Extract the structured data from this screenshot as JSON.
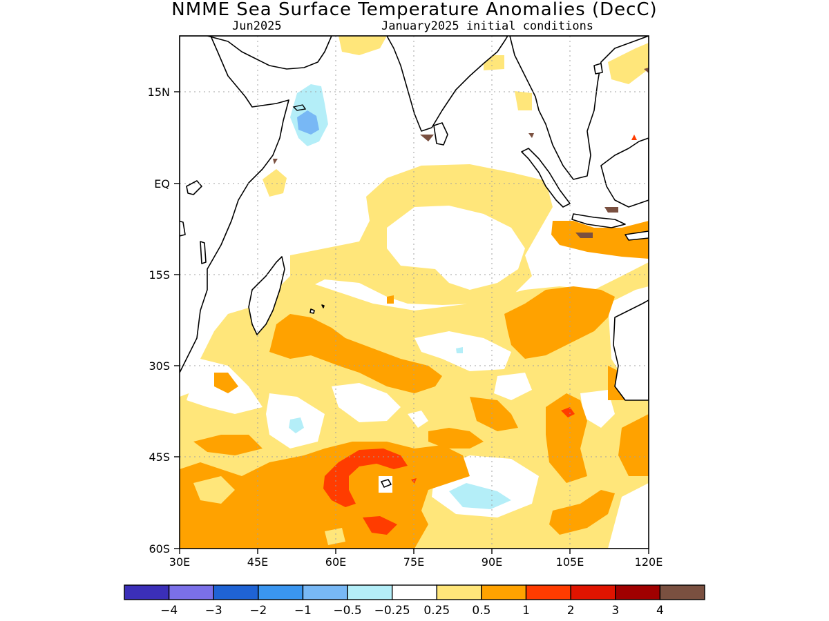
{
  "title": "NMME Sea Surface Temperature Anomalies (DecC)",
  "subtitle_left": "Jun2025",
  "subtitle_right": "January2025 initial conditions",
  "colors": {
    "ocean": "#ffffff",
    "coast": "#000000",
    "grid": "#a0a0a0"
  },
  "chart_data": {
    "type": "heatmap",
    "title": "NMME Sea Surface Temperature Anomalies (DecC)",
    "subtitle": "Jun2025 — January2025 initial conditions",
    "units": "DecC",
    "x_axis": {
      "ticks": [
        "30E",
        "45E",
        "60E",
        "75E",
        "90E",
        "105E",
        "120E"
      ],
      "range": [
        30,
        120
      ]
    },
    "y_axis": {
      "ticks": [
        "15N",
        "EQ",
        "15S",
        "30S",
        "45S",
        "60S"
      ],
      "range": [
        -60,
        24
      ]
    },
    "grid": "dotted",
    "colorbar": {
      "labels": [
        "−4",
        "−3",
        "−2",
        "−1",
        "−0.5",
        "−0.25",
        "0.25",
        "0.5",
        "1",
        "2",
        "3",
        "4"
      ],
      "colors": [
        "#3b2fb8",
        "#7b70e8",
        "#1f63d4",
        "#3a96f0",
        "#78b8f5",
        "#b4eef8",
        "#ffffff",
        "#ffe67a",
        "#ffa200",
        "#ff3c00",
        "#e01400",
        "#a00000",
        "#7a5040"
      ]
    },
    "regions": [
      {
        "level": "0.25 to 0.5",
        "color": "#ffe67a",
        "description": "broad positive anomaly across tropical and subtropical Indian Ocean"
      },
      {
        "level": "0.5 to 1",
        "color": "#ffa200",
        "description": "southern subtropical band 25S-60S and off Sumatra/Java"
      },
      {
        "level": "1 to 2",
        "color": "#ff3c00",
        "description": "arc near Kerguelen around 45S-52S, 62E-72E"
      },
      {
        "level": "-1 to -0.5",
        "color": "#78b8f5",
        "description": "near Socotra, Arabian Sea"
      },
      {
        "level": "-0.5 to -0.25",
        "color": "#b4eef8",
        "description": "Arabian Sea west, south of 45S near 85E"
      }
    ]
  }
}
